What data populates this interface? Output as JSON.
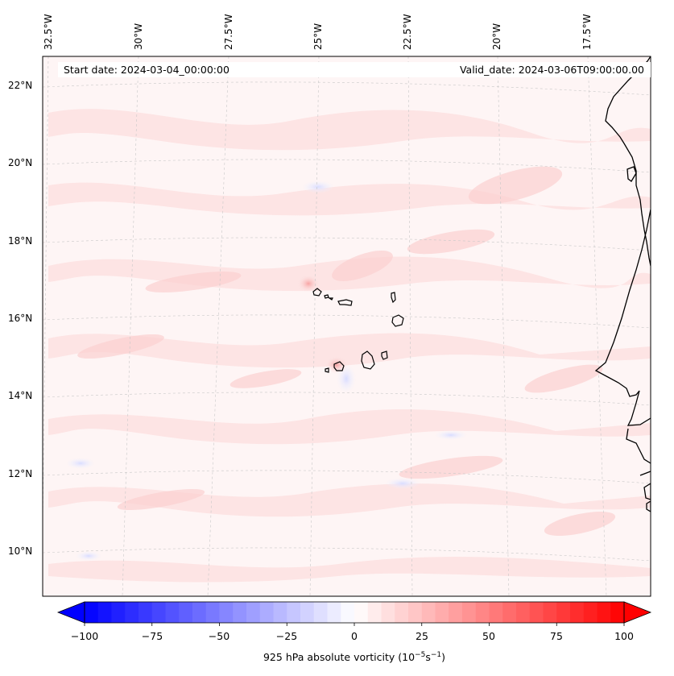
{
  "header": {
    "start_date": "Start date: 2024-03-04_00:00:00",
    "valid_date": "Valid_date: 2024-03-06T09:00:00.00"
  },
  "map": {
    "lon_labels": [
      "32.5°W",
      "30°W",
      "27.5°W",
      "25°W",
      "22.5°W",
      "20°W",
      "17.5°W"
    ],
    "lat_labels": [
      "22°N",
      "20°N",
      "18°N",
      "16°N",
      "14°N",
      "12°N",
      "10°N"
    ],
    "land_color": "#000000",
    "grid_color": "#c8c8c8"
  },
  "colorbar": {
    "ticks": [
      "−100",
      "−75",
      "−50",
      "−25",
      "0",
      "25",
      "50",
      "75",
      "100"
    ],
    "label_prefix": "925 hPa absolute vorticity (10",
    "exp1": "−5",
    "label_mid": "s",
    "exp2": "−1",
    "label_suffix": ")",
    "min_color": "#0000ff",
    "mid_color": "#ffffff",
    "max_color": "#ff0000"
  }
}
